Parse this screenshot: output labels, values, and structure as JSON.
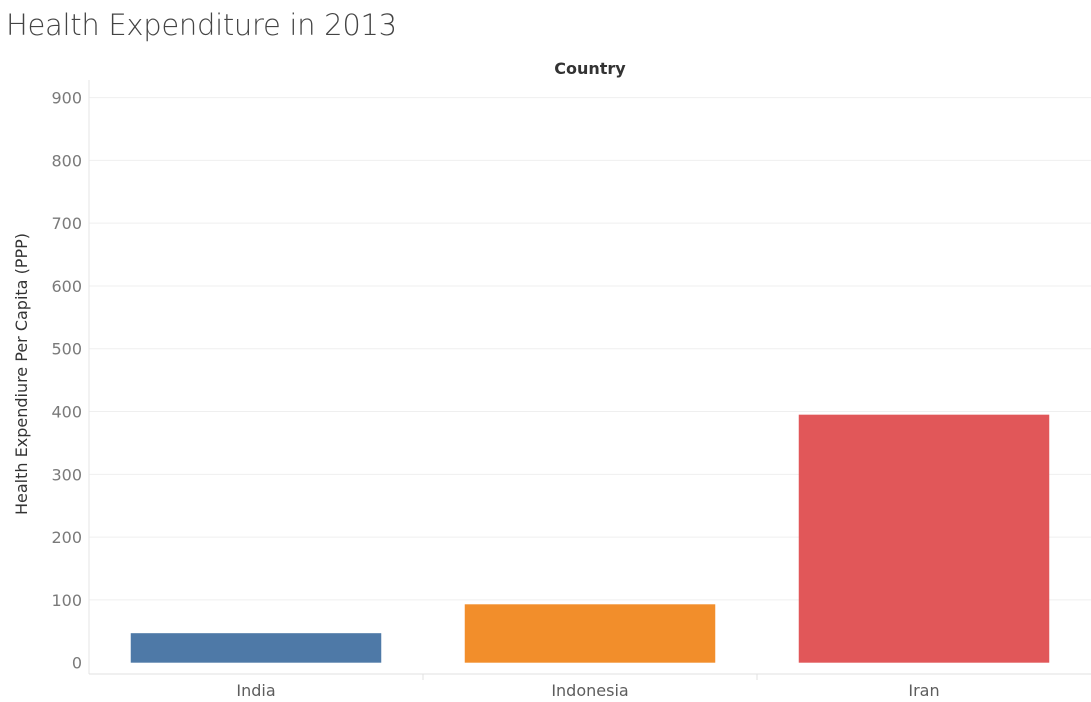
{
  "chart_data": {
    "type": "bar",
    "title": "Health Expenditure in 2013",
    "header": "Country",
    "ylabel": "Health Expendiure Per Capita (PPP)",
    "xlabel": "",
    "categories": [
      "India",
      "Indonesia",
      "Iran"
    ],
    "values": [
      47,
      93,
      395
    ],
    "colors": [
      "#4e79a7",
      "#f28e2b",
      "#e15759"
    ],
    "ylim": [
      -18,
      928
    ],
    "yticks": [
      0,
      100,
      200,
      300,
      400,
      500,
      600,
      700,
      800,
      900
    ],
    "grid": true,
    "legend": "none"
  }
}
